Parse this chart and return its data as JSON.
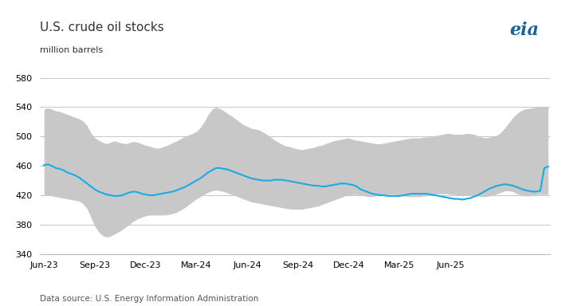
{
  "title": "U.S. crude oil stocks",
  "ylabel": "million barrels",
  "source": "Data source: U.S. Energy Information Administration",
  "ylim": [
    340,
    590
  ],
  "yticks": [
    340,
    380,
    420,
    460,
    500,
    540,
    580
  ],
  "range_color": "#c8c8c8",
  "weekly_color": "#1aabe6",
  "background_color": "#ffffff",
  "grid_color": "#bbbbbb",
  "range_upper": [
    537,
    539,
    537,
    535,
    534,
    532,
    530,
    528,
    526,
    524,
    521,
    515,
    505,
    498,
    495,
    492,
    490,
    492,
    494,
    492,
    491,
    490,
    492,
    493,
    492,
    490,
    488,
    487,
    485,
    484,
    485,
    487,
    489,
    492,
    494,
    497,
    500,
    502,
    504,
    507,
    512,
    520,
    530,
    537,
    540,
    538,
    535,
    531,
    528,
    524,
    520,
    516,
    514,
    511,
    510,
    509,
    506,
    503,
    499,
    495,
    492,
    489,
    487,
    486,
    484,
    483,
    482,
    483,
    484,
    485,
    487,
    488,
    490,
    492,
    494,
    495,
    496,
    497,
    498,
    496,
    495,
    494,
    493,
    492,
    491,
    490,
    490,
    491,
    492,
    493,
    494,
    495,
    496,
    497,
    498,
    498,
    498,
    499,
    499,
    500,
    501,
    502,
    503,
    504,
    504,
    503,
    503,
    503,
    504,
    504,
    503,
    501,
    499,
    498,
    499,
    500,
    502,
    506,
    512,
    519,
    526,
    531,
    535,
    537,
    538,
    539,
    540,
    540,
    540,
    540
  ],
  "range_lower": [
    421,
    420,
    419,
    418,
    417,
    416,
    415,
    414,
    413,
    412,
    408,
    402,
    390,
    378,
    370,
    365,
    363,
    364,
    367,
    370,
    373,
    377,
    381,
    385,
    388,
    390,
    392,
    393,
    393,
    393,
    393,
    393,
    394,
    395,
    397,
    400,
    403,
    407,
    411,
    415,
    418,
    421,
    424,
    426,
    427,
    426,
    425,
    423,
    421,
    419,
    417,
    415,
    413,
    411,
    410,
    409,
    408,
    407,
    406,
    405,
    404,
    403,
    402,
    401,
    401,
    401,
    401,
    402,
    403,
    404,
    405,
    407,
    409,
    411,
    413,
    415,
    417,
    419,
    420,
    421,
    421,
    420,
    419,
    418,
    418,
    419,
    419,
    420,
    421,
    421,
    421,
    420,
    419,
    418,
    418,
    418,
    418,
    419,
    419,
    420,
    421,
    422,
    422,
    422,
    421,
    421,
    420,
    420,
    420,
    420,
    420,
    419,
    418,
    418,
    419,
    420,
    422,
    424,
    426,
    426,
    425,
    422,
    420,
    419,
    419,
    420,
    421,
    421,
    421,
    421
  ],
  "weekly": [
    461,
    462,
    460,
    457,
    456,
    454,
    451,
    449,
    447,
    444,
    440,
    436,
    432,
    428,
    425,
    423,
    421,
    420,
    419,
    419,
    420,
    422,
    424,
    425,
    424,
    422,
    421,
    420,
    420,
    421,
    422,
    423,
    424,
    425,
    427,
    429,
    431,
    434,
    437,
    440,
    443,
    447,
    451,
    454,
    457,
    457,
    456,
    455,
    453,
    451,
    449,
    447,
    445,
    443,
    442,
    441,
    440,
    440,
    440,
    441,
    441,
    441,
    440,
    439,
    438,
    437,
    436,
    435,
    434,
    433,
    433,
    432,
    432,
    433,
    434,
    435,
    436,
    436,
    435,
    434,
    432,
    428,
    426,
    424,
    422,
    421,
    420,
    420,
    419,
    419,
    419,
    419,
    420,
    421,
    422,
    422,
    422,
    422,
    422,
    421,
    420,
    419,
    418,
    417,
    416,
    415,
    415,
    414,
    415,
    416,
    418,
    420,
    423,
    426,
    429,
    431,
    433,
    434,
    435,
    434,
    433,
    431,
    429,
    427,
    426,
    425,
    425,
    426,
    457,
    459
  ],
  "xtick_labels": [
    "Jun-23",
    "Sep-23",
    "Dec-23",
    "Mar-24",
    "Jun-24",
    "Sep-24",
    "Dec-24",
    "Mar-25",
    "Jun-25"
  ],
  "xtick_positions": [
    0,
    13,
    26,
    39,
    52,
    65,
    78,
    91,
    104
  ]
}
